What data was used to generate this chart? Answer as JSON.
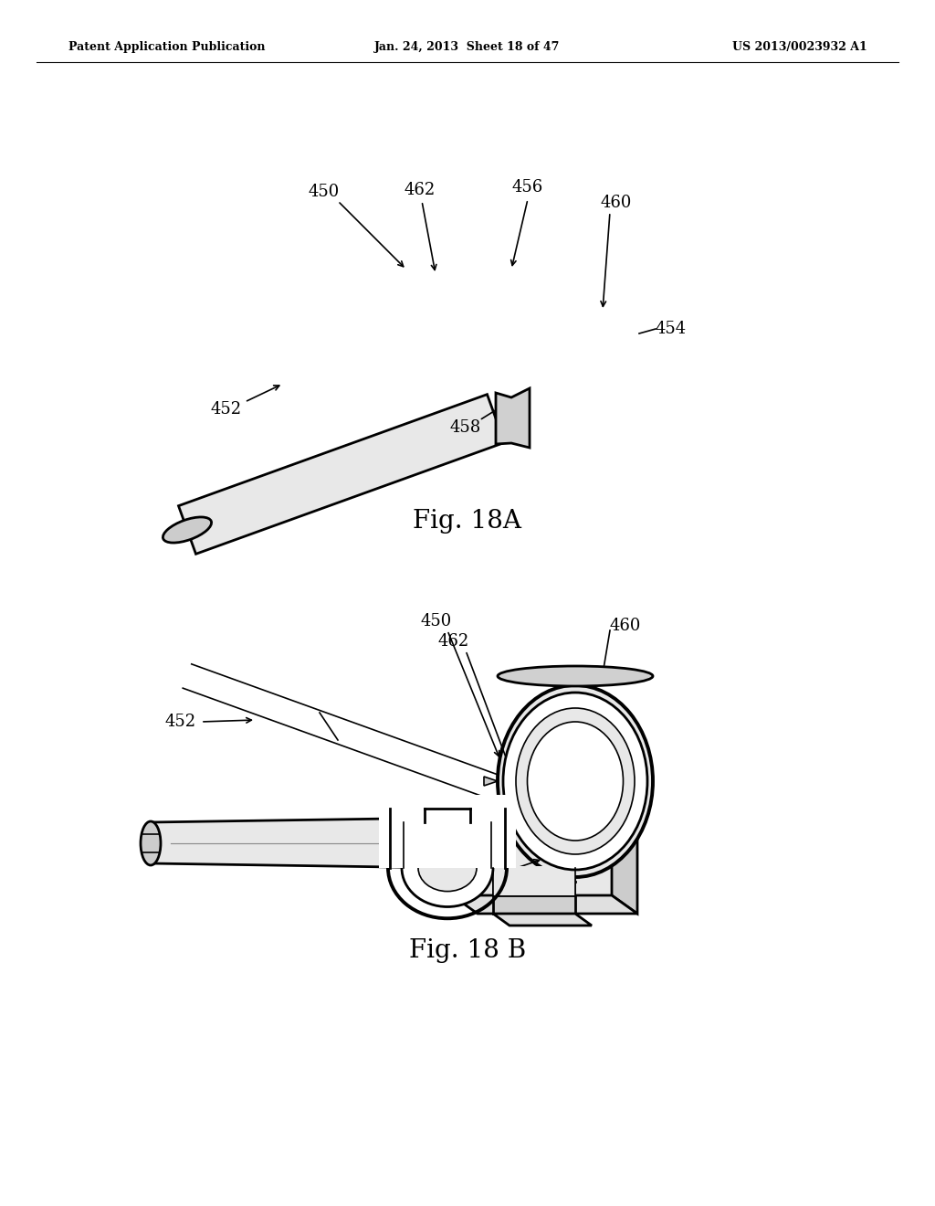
{
  "background_color": "#ffffff",
  "header_left": "Patent Application Publication",
  "header_center": "Jan. 24, 2013  Sheet 18 of 47",
  "header_right": "US 2013/0023932 A1",
  "fig_label_A": "Fig. 18A",
  "fig_label_B": "Fig. 18 B",
  "annotation_fontsize": 13,
  "fig_label_fontsize": 20,
  "line_color": "#000000",
  "lw_main": 2.0,
  "lw_thick": 2.8,
  "lw_thin": 1.2
}
